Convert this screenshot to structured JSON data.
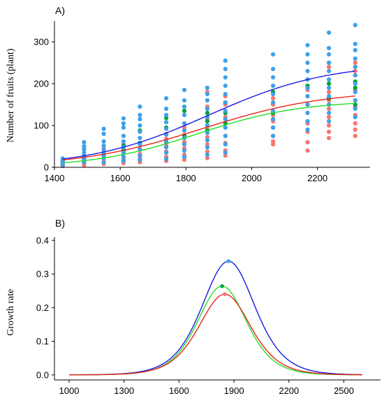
{
  "chart_data": [
    {
      "panel_label": "A)",
      "type": "scatter",
      "ylabel": "Number of fruits (plant)",
      "xlabel": "",
      "xlim": [
        1400,
        2360
      ],
      "ylim": [
        0,
        350
      ],
      "xticks": [
        1400,
        1600,
        1800,
        2000,
        2200
      ],
      "yticks": [
        0,
        100,
        200,
        300
      ],
      "point_series": [
        {
          "color": "#f8766d",
          "points": [
            [
              1425,
              3
            ],
            [
              1425,
              6
            ],
            [
              1425,
              9
            ],
            [
              1425,
              12
            ],
            [
              1425,
              15
            ],
            [
              1490,
              5
            ],
            [
              1490,
              10
            ],
            [
              1490,
              15
            ],
            [
              1490,
              20
            ],
            [
              1490,
              26
            ],
            [
              1550,
              8
            ],
            [
              1550,
              13
            ],
            [
              1550,
              20
            ],
            [
              1550,
              28
            ],
            [
              1550,
              36
            ],
            [
              1550,
              45
            ],
            [
              1610,
              10
            ],
            [
              1610,
              18
            ],
            [
              1610,
              25
            ],
            [
              1610,
              35
            ],
            [
              1610,
              45
            ],
            [
              1610,
              55
            ],
            [
              1660,
              12
            ],
            [
              1660,
              22
            ],
            [
              1660,
              32
            ],
            [
              1660,
              44
            ],
            [
              1660,
              58
            ],
            [
              1740,
              15
            ],
            [
              1740,
              25
            ],
            [
              1740,
              38
            ],
            [
              1740,
              52
            ],
            [
              1740,
              68
            ],
            [
              1740,
              80
            ],
            [
              1795,
              18
            ],
            [
              1795,
              30
            ],
            [
              1795,
              45
            ],
            [
              1795,
              60
            ],
            [
              1795,
              78
            ],
            [
              1795,
              95
            ],
            [
              1865,
              22
            ],
            [
              1865,
              38
            ],
            [
              1865,
              55
            ],
            [
              1865,
              72
            ],
            [
              1865,
              92
            ],
            [
              1865,
              115
            ],
            [
              1865,
              145
            ],
            [
              1865,
              180
            ],
            [
              1920,
              28
            ],
            [
              1920,
              40
            ],
            [
              1920,
              58
            ],
            [
              1920,
              75
            ],
            [
              1920,
              95
            ],
            [
              1920,
              120
            ],
            [
              1920,
              150
            ],
            [
              1920,
              170
            ],
            [
              2065,
              55
            ],
            [
              2065,
              62
            ],
            [
              2065,
              75
            ],
            [
              2065,
              95
            ],
            [
              2065,
              110
            ],
            [
              2065,
              125
            ],
            [
              2065,
              150
            ],
            [
              2065,
              165
            ],
            [
              2170,
              40
            ],
            [
              2170,
              60
            ],
            [
              2170,
              85
            ],
            [
              2170,
              105
            ],
            [
              2170,
              130
            ],
            [
              2170,
              150
            ],
            [
              2170,
              170
            ],
            [
              2170,
              185
            ],
            [
              2235,
              70
            ],
            [
              2235,
              85
            ],
            [
              2235,
              100
            ],
            [
              2235,
              120
            ],
            [
              2235,
              140
            ],
            [
              2235,
              160
            ],
            [
              2235,
              180
            ],
            [
              2235,
              240
            ],
            [
              2315,
              75
            ],
            [
              2315,
              90
            ],
            [
              2315,
              105
            ],
            [
              2315,
              125
            ],
            [
              2315,
              145
            ],
            [
              2315,
              160
            ],
            [
              2315,
              185
            ],
            [
              2315,
              230
            ],
            [
              2315,
              250
            ]
          ]
        },
        {
          "color": "#00a437",
          "points": [
            [
              1425,
              16
            ],
            [
              1490,
              22
            ],
            [
              1550,
              30
            ],
            [
              1610,
              40
            ],
            [
              1610,
              52
            ],
            [
              1660,
              58
            ],
            [
              1660,
              88
            ],
            [
              1740,
              60
            ],
            [
              1740,
              95
            ],
            [
              1740,
              118
            ],
            [
              1795,
              75
            ],
            [
              1795,
              135
            ],
            [
              1865,
              88
            ],
            [
              1865,
              110
            ],
            [
              1865,
              130
            ],
            [
              1920,
              105
            ],
            [
              1920,
              130
            ],
            [
              1920,
              155
            ],
            [
              2065,
              130
            ],
            [
              2065,
              180
            ],
            [
              2170,
              150
            ],
            [
              2170,
              195
            ],
            [
              2235,
              165
            ],
            [
              2235,
              200
            ],
            [
              2235,
              250
            ],
            [
              2315,
              150
            ],
            [
              2315,
              190
            ],
            [
              2315,
              205
            ]
          ]
        },
        {
          "color": "#3fa0ea",
          "points": [
            [
              1425,
              5
            ],
            [
              1425,
              10
            ],
            [
              1425,
              14
            ],
            [
              1425,
              18
            ],
            [
              1425,
              21
            ],
            [
              1490,
              12
            ],
            [
              1490,
              20
            ],
            [
              1490,
              28
            ],
            [
              1490,
              35
            ],
            [
              1490,
              43
            ],
            [
              1490,
              50
            ],
            [
              1490,
              60
            ],
            [
              1550,
              12
            ],
            [
              1550,
              22
            ],
            [
              1550,
              32
            ],
            [
              1550,
              42
            ],
            [
              1550,
              52
            ],
            [
              1550,
              62
            ],
            [
              1550,
              80
            ],
            [
              1550,
              92
            ],
            [
              1610,
              15
            ],
            [
              1610,
              25
            ],
            [
              1610,
              35
            ],
            [
              1610,
              48
            ],
            [
              1610,
              62
            ],
            [
              1610,
              75
            ],
            [
              1610,
              95
            ],
            [
              1610,
              105
            ],
            [
              1610,
              117
            ],
            [
              1660,
              18
            ],
            [
              1660,
              28
            ],
            [
              1660,
              42
            ],
            [
              1660,
              55
            ],
            [
              1660,
              70
            ],
            [
              1660,
              85
            ],
            [
              1660,
              100
            ],
            [
              1660,
              115
            ],
            [
              1660,
              125
            ],
            [
              1660,
              145
            ],
            [
              1740,
              20
            ],
            [
              1740,
              35
            ],
            [
              1740,
              48
            ],
            [
              1740,
              62
            ],
            [
              1740,
              78
            ],
            [
              1740,
              92
            ],
            [
              1740,
              108
            ],
            [
              1740,
              125
            ],
            [
              1740,
              140
            ],
            [
              1740,
              165
            ],
            [
              1795,
              25
            ],
            [
              1795,
              40
            ],
            [
              1795,
              55
            ],
            [
              1795,
              70
            ],
            [
              1795,
              88
            ],
            [
              1795,
              105
            ],
            [
              1795,
              125
            ],
            [
              1795,
              145
            ],
            [
              1795,
              160
            ],
            [
              1795,
              185
            ],
            [
              1865,
              30
            ],
            [
              1865,
              48
            ],
            [
              1865,
              65
            ],
            [
              1865,
              82
            ],
            [
              1865,
              100
            ],
            [
              1865,
              120
            ],
            [
              1865,
              140
            ],
            [
              1865,
              160
            ],
            [
              1865,
              175
            ],
            [
              1865,
              190
            ],
            [
              1920,
              35
            ],
            [
              1920,
              55
            ],
            [
              1920,
              75
            ],
            [
              1920,
              95
            ],
            [
              1920,
              115
            ],
            [
              1920,
              135
            ],
            [
              1920,
              155
            ],
            [
              1920,
              175
            ],
            [
              1920,
              195
            ],
            [
              1920,
              215
            ],
            [
              1920,
              235
            ],
            [
              1920,
              255
            ],
            [
              2065,
              75
            ],
            [
              2065,
              95
            ],
            [
              2065,
              115
            ],
            [
              2065,
              135
            ],
            [
              2065,
              155
            ],
            [
              2065,
              175
            ],
            [
              2065,
              195
            ],
            [
              2065,
              215
            ],
            [
              2065,
              235
            ],
            [
              2065,
              270
            ],
            [
              2170,
              90
            ],
            [
              2170,
              110
            ],
            [
              2170,
              130
            ],
            [
              2170,
              150
            ],
            [
              2170,
              170
            ],
            [
              2170,
              190
            ],
            [
              2170,
              210
            ],
            [
              2170,
              230
            ],
            [
              2170,
              250
            ],
            [
              2170,
              270
            ],
            [
              2170,
              292
            ],
            [
              2235,
              110
            ],
            [
              2235,
              130
            ],
            [
              2235,
              150
            ],
            [
              2235,
              170
            ],
            [
              2235,
              190
            ],
            [
              2235,
              210
            ],
            [
              2235,
              230
            ],
            [
              2235,
              250
            ],
            [
              2235,
              270
            ],
            [
              2235,
              285
            ],
            [
              2235,
              322
            ],
            [
              2315,
              120
            ],
            [
              2315,
              140
            ],
            [
              2315,
              160
            ],
            [
              2315,
              180
            ],
            [
              2315,
              200
            ],
            [
              2315,
              220
            ],
            [
              2315,
              240
            ],
            [
              2315,
              260
            ],
            [
              2315,
              280
            ],
            [
              2315,
              295
            ],
            [
              2315,
              340
            ]
          ]
        }
      ],
      "curves": [
        {
          "color": "#1a1ae6",
          "K": 250,
          "r": 0.0055,
          "x0": 1870
        },
        {
          "color": "#e8241a",
          "K": 185,
          "r": 0.0053,
          "x0": 1850
        },
        {
          "color": "#22dd22",
          "K": 160,
          "r": 0.0064,
          "x0": 1835
        }
      ]
    },
    {
      "panel_label": "B)",
      "type": "line",
      "ylabel": "Growth rate",
      "xlabel": "",
      "xlim": [
        920,
        2700
      ],
      "ylim": [
        -0.015,
        0.41
      ],
      "xticks": [
        1000,
        1300,
        1600,
        1900,
        2200,
        2500
      ],
      "yticks": [
        0.0,
        0.1,
        0.2,
        0.3,
        0.4
      ],
      "ytick_labels": [
        "0.0",
        "0.1",
        "0.2",
        "0.3",
        "0.4"
      ],
      "x_range": [
        1000,
        2600
      ],
      "series": [
        {
          "color": "#1a1ae6",
          "peak_x": 1870,
          "peak_y": 0.338,
          "width": 195,
          "peak_marker_color": "#3fa0ea"
        },
        {
          "color": "#22dd22",
          "peak_x": 1835,
          "peak_y": 0.264,
          "width": 180,
          "peak_marker_color": "#00a437"
        },
        {
          "color": "#e8241a",
          "peak_x": 1850,
          "peak_y": 0.24,
          "width": 190,
          "peak_marker_color": "#f8766d"
        }
      ]
    }
  ]
}
